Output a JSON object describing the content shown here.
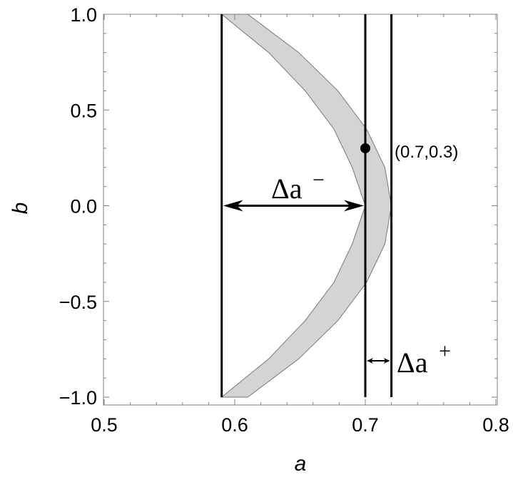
{
  "chart_data": {
    "type": "area",
    "title": "",
    "xlabel": "a",
    "ylabel": "b",
    "xlim": [
      0.5,
      0.8
    ],
    "ylim": [
      -1.0,
      1.0
    ],
    "x_ticks": [
      0.5,
      0.6,
      0.7,
      0.8
    ],
    "x_tick_labels": [
      "0.5",
      "0.6",
      "0.7",
      "0.8"
    ],
    "y_ticks": [
      -1.0,
      -0.5,
      0.0,
      0.5,
      1.0
    ],
    "y_tick_labels": [
      "−1.0",
      "−0.5",
      "0.0",
      "0.5",
      "1.0"
    ],
    "grid": false,
    "band": {
      "fill": "#d4d4d4",
      "edge": "#777777",
      "outer_edge": [
        {
          "b": -1.0,
          "a": 0.61
        },
        {
          "b": -0.8,
          "a": 0.649
        },
        {
          "b": -0.6,
          "a": 0.679
        },
        {
          "b": -0.4,
          "a": 0.701
        },
        {
          "b": -0.2,
          "a": 0.715
        },
        {
          "b": 0.0,
          "a": 0.72
        },
        {
          "b": 0.2,
          "a": 0.715
        },
        {
          "b": 0.4,
          "a": 0.701
        },
        {
          "b": 0.6,
          "a": 0.679
        },
        {
          "b": 0.8,
          "a": 0.649
        },
        {
          "b": 1.0,
          "a": 0.61
        }
      ],
      "inner_edge": [
        {
          "b": -1.0,
          "a": 0.59
        },
        {
          "b": -0.8,
          "a": 0.626
        },
        {
          "b": -0.6,
          "a": 0.654
        },
        {
          "b": -0.4,
          "a": 0.676
        },
        {
          "b": -0.2,
          "a": 0.69
        },
        {
          "b": 0.0,
          "a": 0.7
        },
        {
          "b": 0.2,
          "a": 0.69
        },
        {
          "b": 0.4,
          "a": 0.676
        },
        {
          "b": 0.6,
          "a": 0.654
        },
        {
          "b": 0.8,
          "a": 0.626
        },
        {
          "b": 1.0,
          "a": 0.59
        }
      ]
    },
    "vertical_lines": [
      0.59,
      0.7,
      0.72
    ],
    "point": {
      "a": 0.7,
      "b": 0.3,
      "label": "(0.7,0.3)"
    },
    "annotations": {
      "delta_minus": {
        "base": "Δa",
        "sup": "−",
        "from_a": 0.59,
        "to_a": 0.7,
        "at_b": 0.0
      },
      "delta_plus": {
        "base": "Δa",
        "sup": "+",
        "from_a": 0.7,
        "to_a": 0.72,
        "at_b": -0.81
      }
    }
  }
}
